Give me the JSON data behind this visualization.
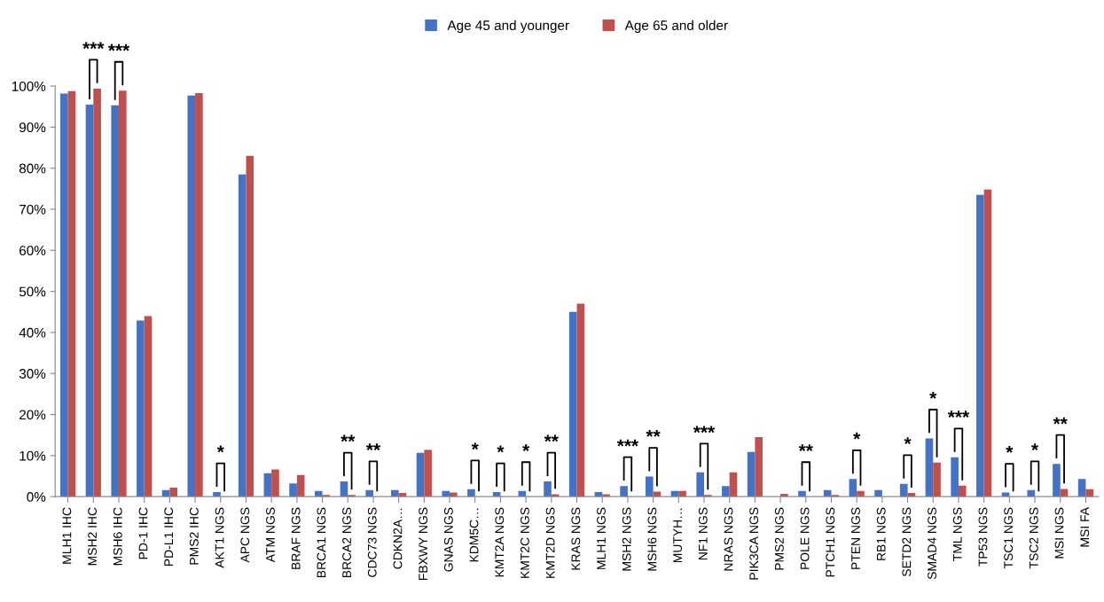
{
  "chart_data": {
    "type": "bar",
    "categories": [
      "MLH1 IHC",
      "MSH2 IHC",
      "MSH6 IHC",
      "PD-1 IHC",
      "PD-L1 IHC",
      "PMS2 IHC",
      "AKT1 NGS",
      "APC NGS",
      "ATM NGS",
      "BRAF NGS",
      "BRCA1 NGS",
      "BRCA2 NGS",
      "CDC73 NGS",
      "CDKN2A…",
      "FBXWY NGS",
      "GNAS NGS",
      "KDM5C…",
      "KMT2A NGS",
      "KMT2C NGS",
      "KMT2D NGS",
      "KRAS NGS",
      "MLH1 NGS",
      "MSH2 NGS",
      "MSH6 NGS",
      "MUTYH…",
      "NF1 NGS",
      "NRAS NGS",
      "PIK3CA NGS",
      "PMS2 NGS",
      "POLE NGS",
      "PTCH1 NGS",
      "PTEN NGS",
      "RB1 NGS",
      "SETD2 NGS",
      "SMAD4 NGS",
      "TML NGS",
      "TP53 NGS",
      "TSC1 NGS",
      "TSC2 NGS",
      "MSI NGS",
      "MSI FA"
    ],
    "series": [
      {
        "name": "Age 45 and younger",
        "color": "#4472c4",
        "values": [
          98.2,
          95.5,
          95.3,
          42.9,
          1.6,
          97.7,
          1.1,
          78.5,
          5.7,
          3.2,
          1.4,
          3.7,
          1.6,
          1.6,
          10.7,
          1.4,
          1.8,
          1.1,
          1.4,
          3.7,
          45.0,
          1.1,
          2.6,
          4.9,
          1.4,
          5.9,
          2.6,
          10.9,
          0,
          1.4,
          1.6,
          4.3,
          1.6,
          3.1,
          14.2,
          9.6,
          73.5,
          1.0,
          1.6,
          8.0,
          4.3
        ]
      },
      {
        "name": "Age 65 and older",
        "color": "#c0504d",
        "values": [
          98.8,
          99.4,
          98.9,
          44.0,
          2.2,
          98.3,
          0,
          83.0,
          6.6,
          5.3,
          0.4,
          0.4,
          0,
          0.9,
          11.4,
          1.0,
          0,
          0,
          0,
          0.6,
          47.0,
          0.6,
          0,
          1.2,
          1.4,
          0.4,
          5.9,
          14.5,
          0.7,
          0,
          0.4,
          1.4,
          0,
          0.9,
          8.3,
          2.7,
          74.8,
          0,
          0,
          1.9,
          1.8
        ]
      }
    ],
    "ylim": [
      0,
      100
    ],
    "yticks": [
      {
        "value": 0,
        "label": "0%"
      },
      {
        "value": 10,
        "label": "10%"
      },
      {
        "value": 20,
        "label": "20%"
      },
      {
        "value": 30,
        "label": "30%"
      },
      {
        "value": 40,
        "label": "40%"
      },
      {
        "value": 50,
        "label": "50%"
      },
      {
        "value": 60,
        "label": "60%"
      },
      {
        "value": 70,
        "label": "70%"
      },
      {
        "value": 80,
        "label": "80%"
      },
      {
        "value": 90,
        "label": "90%"
      },
      {
        "value": 100,
        "label": "100%"
      }
    ],
    "legend": "top",
    "annotations": [
      {
        "text": "***",
        "x": "MSH2 IHC",
        "y": 99.4
      },
      {
        "text": "***",
        "x": "MSH6 IHC",
        "y": 98.9
      },
      {
        "text": "*",
        "x": "AKT1 NGS",
        "y": 1.1
      },
      {
        "text": "**",
        "x": "BRCA2 NGS",
        "y": 3.7
      },
      {
        "text": "**",
        "x": "CDC73 NGS",
        "y": 1.6
      },
      {
        "text": "*",
        "x": "KDM5C…",
        "y": 1.8
      },
      {
        "text": "*",
        "x": "KMT2A NGS",
        "y": 1.1
      },
      {
        "text": "*",
        "x": "KMT2C NGS",
        "y": 1.4
      },
      {
        "text": "**",
        "x": "KMT2D NGS",
        "y": 3.7
      },
      {
        "text": "***",
        "x": "MSH2 NGS",
        "y": 2.6
      },
      {
        "text": "**",
        "x": "MSH6 NGS",
        "y": 4.9
      },
      {
        "text": "***",
        "x": "NF1 NGS",
        "y": 5.9
      },
      {
        "text": "**",
        "x": "POLE NGS",
        "y": 1.4
      },
      {
        "text": "*",
        "x": "PTEN NGS",
        "y": 4.3
      },
      {
        "text": "*",
        "x": "SETD2 NGS",
        "y": 3.1
      },
      {
        "text": "*",
        "x": "SMAD4 NGS",
        "y": 14.2
      },
      {
        "text": "***",
        "x": "TML NGS",
        "y": 9.6
      },
      {
        "text": "*",
        "x": "TSC1 NGS",
        "y": 1.0
      },
      {
        "text": "*",
        "x": "TSC2 NGS",
        "y": 1.6
      },
      {
        "text": "**",
        "x": "MSI NGS",
        "y": 8.0
      }
    ]
  }
}
